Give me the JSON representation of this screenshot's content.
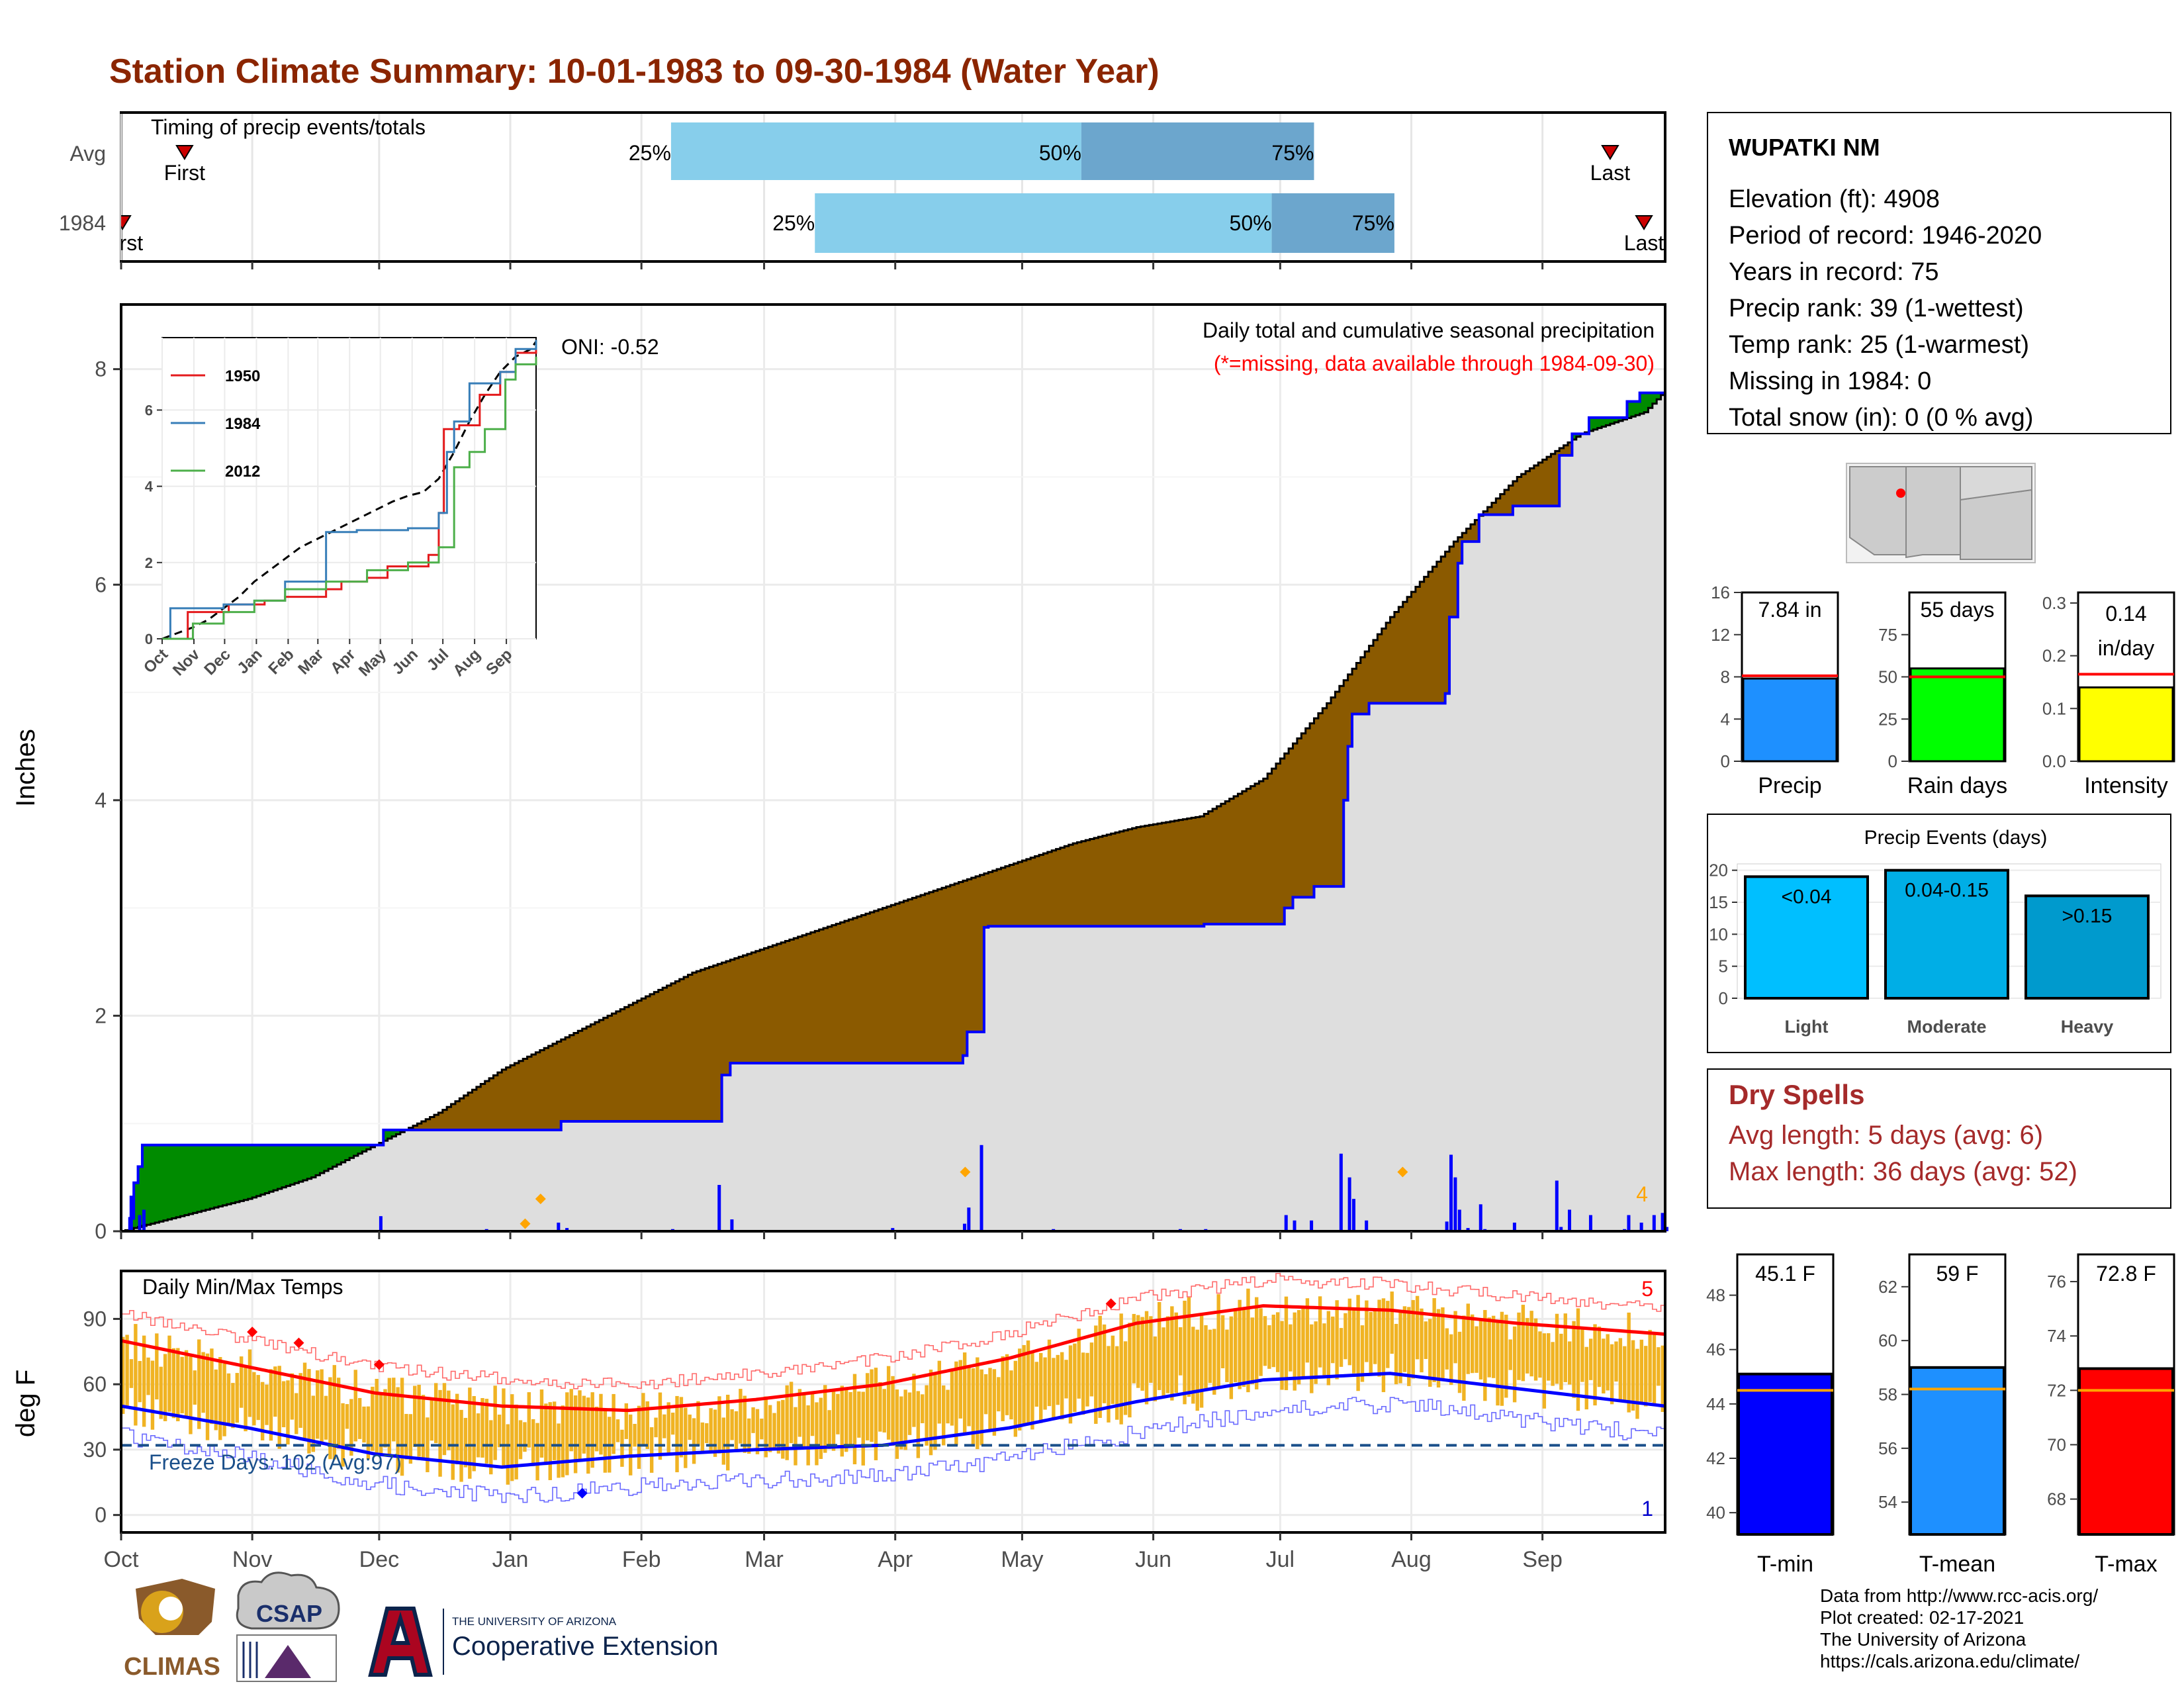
{
  "page": {
    "title": "Station Climate Summary: 10-01-1983 to 09-30-1984 (Water Year)",
    "months": [
      "Oct",
      "Nov",
      "Dec",
      "Jan",
      "Feb",
      "Mar",
      "Apr",
      "May",
      "Jun",
      "Jul",
      "Aug",
      "Sep"
    ]
  },
  "timing": {
    "label": "Timing of precip events/totals",
    "rows": [
      {
        "name": "Avg",
        "first": "First",
        "last": "Last",
        "first_doy": 15,
        "last_doy": 352,
        "q25": 130,
        "q50": 227,
        "q75": 282,
        "p25": "25%",
        "p50": "50%",
        "p75": "75%"
      },
      {
        "name": "1984",
        "first": "First",
        "last": "Last",
        "first_doy": 0,
        "last_doy": 360,
        "q25": 164,
        "q50": 272,
        "q75": 301,
        "p25": "25%",
        "p50": "50%",
        "p75": "75%"
      }
    ]
  },
  "precip_panel": {
    "ylabel": "Inches",
    "oni": "ONI: -0.52",
    "subtitle": "Daily total and cumulative seasonal precipitation",
    "missing_note": "(*=missing, data available through 1984-09-30)",
    "corner_count": "4",
    "yticks": [
      "0",
      "2",
      "4",
      "6",
      "8"
    ]
  },
  "inset": {
    "yticks": [
      "0",
      "2",
      "4",
      "6"
    ],
    "months": [
      "Oct",
      "Nov",
      "Dec",
      "Jan",
      "Feb",
      "Mar",
      "Apr",
      "May",
      "Jun",
      "Jul",
      "Aug",
      "Sep"
    ],
    "legend": [
      {
        "name": "1950",
        "color": "#e41a1c"
      },
      {
        "name": "1984",
        "color": "#377eb8"
      },
      {
        "name": "2012",
        "color": "#4daf4a"
      }
    ]
  },
  "temp_panel": {
    "ylabel": "deg F",
    "label": "Daily Min/Max Temps",
    "freeze_days": "Freeze Days: 102 (Avg:97)",
    "max_record_count": "5",
    "min_record_count": "1",
    "yticks": [
      "0",
      "30",
      "60",
      "90"
    ]
  },
  "station": {
    "name": "WUPATKI NM",
    "lines": [
      "Elevation (ft): 4908",
      "Period of record: 1946-2020",
      "Years in record: 75",
      "Precip rank: 39 (1-wettest)",
      "Temp rank: 25 (1-warmest)",
      "Missing in 1984: 0",
      "Total snow (in): 0 (0 % avg)"
    ]
  },
  "summary_bars": [
    {
      "label": "Precip",
      "value_text": "7.84 in",
      "value": 7.84,
      "avg": 8.1,
      "ymax": 16,
      "ticks": [
        "0",
        "4",
        "8",
        "12",
        "16"
      ],
      "tick_vals": [
        0,
        4,
        8,
        12,
        16
      ],
      "color": "#1e90ff"
    },
    {
      "label": "Rain days",
      "value_text": "55 days",
      "value": 55,
      "avg": 50,
      "ymax": 100,
      "ticks": [
        "0",
        "25",
        "50",
        "75"
      ],
      "tick_vals": [
        0,
        25,
        50,
        75
      ],
      "color": "#00ff00"
    },
    {
      "label": "Intensity",
      "value_text_1": "0.14",
      "value_text_2": "in/day",
      "value": 0.14,
      "avg": 0.165,
      "ymax": 0.32,
      "ticks": [
        "0.0",
        "0.1",
        "0.2",
        "0.3"
      ],
      "tick_vals": [
        0,
        0.1,
        0.2,
        0.3
      ],
      "color": "#ffff00"
    }
  ],
  "events": {
    "title": "Precip Events (days)",
    "ticks": [
      "0",
      "5",
      "10",
      "15",
      "20"
    ],
    "bars": [
      {
        "label": "Light",
        "range": "<0.04",
        "value": 19,
        "color": "#00bfff"
      },
      {
        "label": "Moderate",
        "range": "0.04-0.15",
        "value": 20,
        "color": "#00aee6"
      },
      {
        "label": "Heavy",
        "range": ">0.15",
        "value": 16,
        "color": "#009acd"
      }
    ]
  },
  "dry_spells": {
    "title": "Dry Spells",
    "avg_length": "Avg length: 5 days (avg: 6)",
    "max_length": "Max length: 36 days (avg: 52)"
  },
  "temp_bars": [
    {
      "label": "T-min",
      "value_text": "45.1 F",
      "value": 45.1,
      "avg": 44.5,
      "ymin": 39.2,
      "ymax": 49.5,
      "ticks": [
        "40",
        "42",
        "44",
        "46",
        "48"
      ],
      "tick_vals": [
        40,
        42,
        44,
        46,
        48
      ],
      "color": "#0000ff"
    },
    {
      "label": "T-mean",
      "value_text": "59 F",
      "value": 59.0,
      "avg": 58.2,
      "ymin": 52.8,
      "ymax": 63.2,
      "ticks": [
        "54",
        "56",
        "58",
        "60",
        "62"
      ],
      "tick_vals": [
        54,
        56,
        58,
        60,
        62
      ],
      "color": "#1e90ff"
    },
    {
      "label": "T-max",
      "value_text": "72.8 F",
      "value": 72.8,
      "avg": 72.0,
      "ymin": 66.7,
      "ymax": 77.0,
      "ticks": [
        "68",
        "70",
        "72",
        "74",
        "76"
      ],
      "tick_vals": [
        68,
        70,
        72,
        74,
        76
      ],
      "color": "#ff0000"
    }
  ],
  "footer": {
    "lines": [
      "Data from http://www.rcc-acis.org/",
      "Plot created: 02-17-2021",
      "The University of Arizona",
      "https://cals.arizona.edu/climate/"
    ],
    "climas": "CLIMAS",
    "csap": "CSAP",
    "ua_small": "THE UNIVERSITY OF ARIZONA",
    "coop": "Cooperative Extension"
  },
  "chart_data": {
    "type": "area",
    "x_unit": "day of water year (0 = Oct 1, 1983)",
    "cumulative_1984": {
      "x": [
        0,
        4,
        9,
        200,
        215,
        350,
        360,
        365
      ],
      "y": [
        0,
        0.5,
        0.8,
        2.8,
        3.3,
        7.0,
        7.7,
        7.84
      ]
    },
    "cumulative_avg": {
      "x": [
        0,
        15,
        30,
        45,
        60,
        75,
        90,
        105,
        120,
        135,
        150,
        165,
        180,
        195,
        210,
        225,
        240,
        255,
        270,
        285,
        300,
        315,
        330,
        345,
        360,
        365
      ],
      "y": [
        0,
        0.15,
        0.3,
        0.5,
        0.8,
        1.1,
        1.5,
        1.8,
        2.1,
        2.4,
        2.6,
        2.8,
        3.0,
        3.2,
        3.4,
        3.6,
        3.75,
        3.85,
        4.2,
        4.9,
        5.7,
        6.4,
        7.0,
        7.4,
        7.6,
        7.8
      ]
    },
    "temp_avg_max": {
      "x": [
        0,
        30,
        60,
        90,
        120,
        150,
        180,
        210,
        240,
        270,
        300,
        330,
        365
      ],
      "y": [
        80,
        68,
        56,
        50,
        48,
        53,
        60,
        72,
        88,
        96,
        94,
        88,
        83
      ]
    },
    "temp_avg_min": {
      "x": [
        0,
        30,
        60,
        90,
        120,
        150,
        180,
        210,
        240,
        270,
        300,
        330,
        365
      ],
      "y": [
        50,
        40,
        28,
        22,
        27,
        30,
        32,
        40,
        52,
        62,
        65,
        58,
        50
      ]
    },
    "freeze_threshold": 32
  }
}
